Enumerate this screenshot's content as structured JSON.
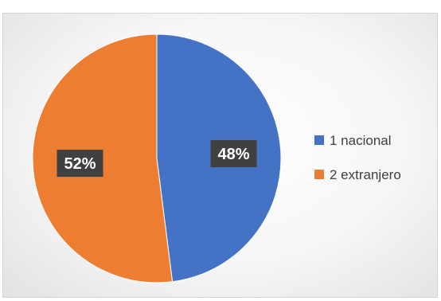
{
  "chart_data": {
    "type": "pie",
    "categories": [
      "1 nacional",
      "2 extranjero"
    ],
    "values": [
      48,
      52
    ],
    "data_labels": [
      "48%",
      "52%"
    ],
    "colors": [
      "#4472C4",
      "#ED7D31"
    ],
    "title": "",
    "legend": {
      "position": "right",
      "entries": [
        "1 nacional",
        "2 extranjero"
      ]
    }
  }
}
